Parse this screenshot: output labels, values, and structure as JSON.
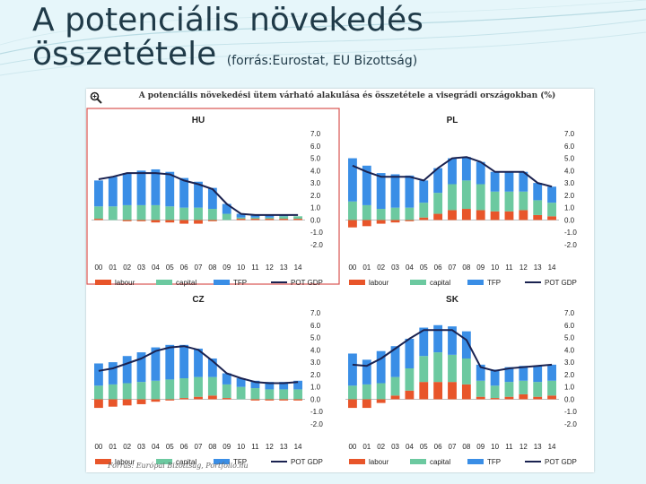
{
  "slide": {
    "title_line1": "A potenciális növekedés",
    "title_line2": "összetétele",
    "title_source": "(forrás:Eurostat, EU Bizottság)"
  },
  "figure": {
    "title": "A potenciális növekedési ütem várható alakulása és összetétele a visegrádi országokban (%)",
    "zoom_icon": "magnifier-icon",
    "source": "Forrás: Európai Bizottság, Portfolio.hu"
  },
  "colors": {
    "labour": "#e8552a",
    "capital": "#6cc9a0",
    "tfp": "#3a8ee6",
    "pot_gdp": "#1a2250",
    "highlight_border": "#d9534f"
  },
  "chart_data": [
    {
      "type": "bar",
      "stacked": true,
      "title": "HU",
      "categories": [
        "00",
        "01",
        "02",
        "03",
        "04",
        "05",
        "06",
        "07",
        "08",
        "09",
        "10",
        "11",
        "12",
        "13",
        "14"
      ],
      "series": [
        {
          "name": "labour",
          "values": [
            0.1,
            0.0,
            -0.1,
            -0.1,
            -0.2,
            -0.2,
            -0.3,
            -0.3,
            -0.1,
            0.0,
            0.1,
            0.1,
            0.1,
            0.1,
            0.1
          ]
        },
        {
          "name": "capital",
          "values": [
            1.0,
            1.1,
            1.2,
            1.2,
            1.2,
            1.1,
            1.0,
            1.0,
            0.9,
            0.5,
            0.1,
            0.1,
            0.1,
            0.2,
            0.2
          ]
        },
        {
          "name": "TFP",
          "values": [
            2.1,
            2.4,
            2.6,
            2.8,
            2.9,
            2.8,
            2.4,
            2.1,
            1.7,
            0.8,
            0.3,
            0.2,
            0.2,
            0.1,
            0.0
          ]
        },
        {
          "name": "POT GDP",
          "type": "line",
          "values": [
            3.3,
            3.5,
            3.8,
            3.8,
            3.8,
            3.7,
            3.2,
            2.9,
            2.5,
            1.3,
            0.5,
            0.4,
            0.4,
            0.4,
            0.4
          ]
        }
      ],
      "ylim": [
        -2,
        7
      ],
      "yticks": [
        "7.0",
        "6.0",
        "5.0",
        "4.0",
        "3.0",
        "2.0",
        "1.0",
        "0.0",
        "-1.0",
        "-2.0"
      ],
      "legend": [
        "labour",
        "capital",
        "TFP",
        "POT GDP"
      ],
      "legend_position": "bottom",
      "highlighted": true
    },
    {
      "type": "bar",
      "stacked": true,
      "title": "PL",
      "categories": [
        "00",
        "01",
        "02",
        "03",
        "04",
        "05",
        "06",
        "07",
        "08",
        "09",
        "10",
        "11",
        "12",
        "13",
        "14"
      ],
      "series": [
        {
          "name": "labour",
          "values": [
            -0.6,
            -0.5,
            -0.3,
            -0.2,
            -0.1,
            0.2,
            0.5,
            0.8,
            0.9,
            0.8,
            0.7,
            0.7,
            0.8,
            0.4,
            0.3
          ]
        },
        {
          "name": "capital",
          "values": [
            1.5,
            1.2,
            0.9,
            1.0,
            1.0,
            1.2,
            1.7,
            2.1,
            2.3,
            2.1,
            1.6,
            1.6,
            1.5,
            1.2,
            1.1
          ]
        },
        {
          "name": "TFP",
          "values": [
            3.5,
            3.2,
            2.9,
            2.7,
            2.6,
            1.8,
            2.0,
            2.1,
            1.9,
            1.8,
            1.6,
            1.6,
            1.6,
            1.4,
            1.3
          ]
        },
        {
          "name": "POT GDP",
          "type": "line",
          "values": [
            4.4,
            3.9,
            3.5,
            3.5,
            3.5,
            3.2,
            4.2,
            5.0,
            5.1,
            4.7,
            3.9,
            3.9,
            3.9,
            3.0,
            2.7
          ]
        }
      ],
      "ylim": [
        -2,
        7
      ],
      "yticks": [
        "7.0",
        "6.0",
        "5.0",
        "4.0",
        "3.0",
        "2.0",
        "1.0",
        "0.0",
        "-1.0",
        "-2.0"
      ],
      "legend": [
        "labour",
        "capital",
        "TFP",
        "POT GDP"
      ],
      "legend_position": "bottom"
    },
    {
      "type": "bar",
      "stacked": true,
      "title": "CZ",
      "categories": [
        "00",
        "01",
        "02",
        "03",
        "04",
        "05",
        "06",
        "07",
        "08",
        "09",
        "10",
        "11",
        "12",
        "13",
        "14"
      ],
      "series": [
        {
          "name": "labour",
          "values": [
            -0.7,
            -0.6,
            -0.5,
            -0.4,
            -0.2,
            -0.1,
            0.1,
            0.2,
            0.3,
            0.1,
            0.0,
            -0.1,
            -0.1,
            -0.1,
            -0.1
          ]
        },
        {
          "name": "capital",
          "values": [
            1.1,
            1.2,
            1.3,
            1.4,
            1.5,
            1.6,
            1.6,
            1.6,
            1.5,
            1.1,
            1.0,
            0.9,
            0.8,
            0.8,
            0.8
          ]
        },
        {
          "name": "TFP",
          "values": [
            1.8,
            1.8,
            2.2,
            2.4,
            2.7,
            2.8,
            2.7,
            2.3,
            1.5,
            0.9,
            0.7,
            0.6,
            0.6,
            0.6,
            0.7
          ]
        },
        {
          "name": "POT GDP",
          "type": "line",
          "values": [
            2.3,
            2.5,
            2.9,
            3.3,
            3.9,
            4.2,
            4.3,
            4.0,
            3.1,
            2.1,
            1.7,
            1.4,
            1.3,
            1.3,
            1.4
          ]
        }
      ],
      "ylim": [
        -2,
        7
      ],
      "yticks": [
        "7.0",
        "6.0",
        "5.0",
        "4.0",
        "3.0",
        "2.0",
        "1.0",
        "0.0",
        "-1.0",
        "-2.0"
      ],
      "legend": [
        "labour",
        "capital",
        "TFP",
        "POT GDP"
      ],
      "legend_position": "bottom"
    },
    {
      "type": "bar",
      "stacked": true,
      "title": "SK",
      "categories": [
        "00",
        "01",
        "02",
        "03",
        "04",
        "05",
        "06",
        "07",
        "08",
        "09",
        "10",
        "11",
        "12",
        "13",
        "14"
      ],
      "series": [
        {
          "name": "labour",
          "values": [
            -0.7,
            -0.7,
            -0.3,
            0.3,
            0.7,
            1.4,
            1.4,
            1.4,
            1.2,
            0.2,
            0.1,
            0.2,
            0.4,
            0.2,
            0.3
          ]
        },
        {
          "name": "capital",
          "values": [
            1.1,
            1.2,
            1.3,
            1.5,
            1.8,
            2.1,
            2.4,
            2.2,
            2.1,
            1.3,
            1.0,
            1.2,
            1.1,
            1.2,
            1.2
          ]
        },
        {
          "name": "TFP",
          "values": [
            2.6,
            2.0,
            2.6,
            2.5,
            2.4,
            2.3,
            2.2,
            2.3,
            2.2,
            1.3,
            1.3,
            1.2,
            1.2,
            1.3,
            1.3
          ]
        },
        {
          "name": "POT GDP",
          "type": "line",
          "values": [
            2.8,
            2.7,
            3.3,
            4.1,
            4.9,
            5.6,
            5.6,
            5.6,
            4.8,
            2.6,
            2.3,
            2.5,
            2.6,
            2.7,
            2.8
          ]
        }
      ],
      "ylim": [
        -2,
        7
      ],
      "yticks": [
        "7.0",
        "6.0",
        "5.0",
        "4.0",
        "3.0",
        "2.0",
        "1.0",
        "0.0",
        "-1.0",
        "-2.0"
      ],
      "legend": [
        "labour",
        "capital",
        "TFP",
        "POT GDP"
      ],
      "legend_position": "bottom"
    }
  ]
}
